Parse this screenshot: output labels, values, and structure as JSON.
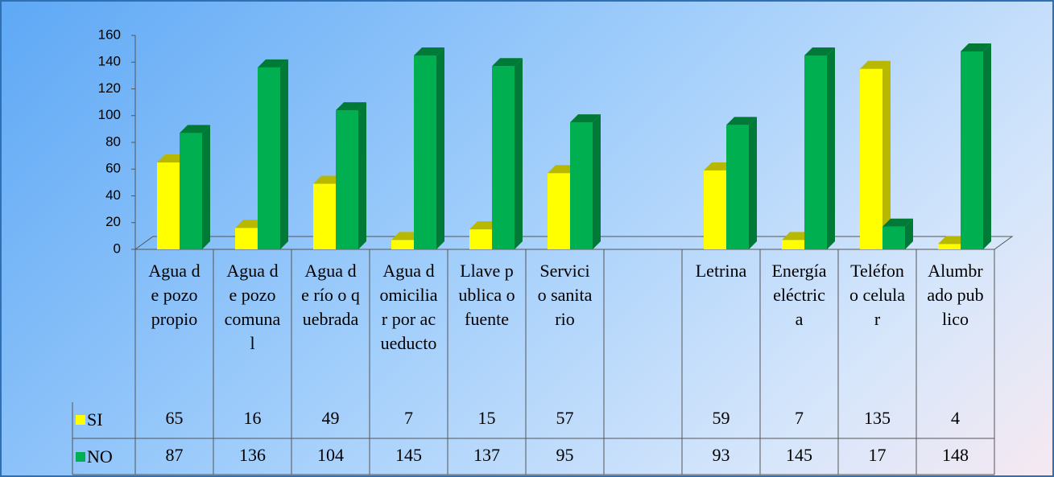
{
  "chart_data": {
    "type": "bar3d",
    "categories": [
      "Agua de pozo propio",
      "Agua de pozo comunal",
      "Agua de río o quebrada",
      "Agua domiciliar por acueducto",
      "Llave publica o fuente",
      "Servicio sanitario",
      null,
      "Letrina",
      "Energía eléctrica",
      "Teléfono celular",
      "Alumbrado publico"
    ],
    "series": [
      {
        "name": "SI",
        "color": "#ffff00",
        "side": "#b8b800",
        "values": [
          65,
          16,
          49,
          7,
          15,
          57,
          null,
          59,
          7,
          135,
          4
        ]
      },
      {
        "name": "NO",
        "color": "#00b050",
        "side": "#007a36",
        "values": [
          87,
          136,
          104,
          145,
          137,
          95,
          null,
          93,
          145,
          17,
          148
        ]
      }
    ],
    "ylim": [
      0,
      160
    ],
    "yticks": [
      0,
      20,
      40,
      60,
      80,
      100,
      120,
      140,
      160
    ]
  }
}
